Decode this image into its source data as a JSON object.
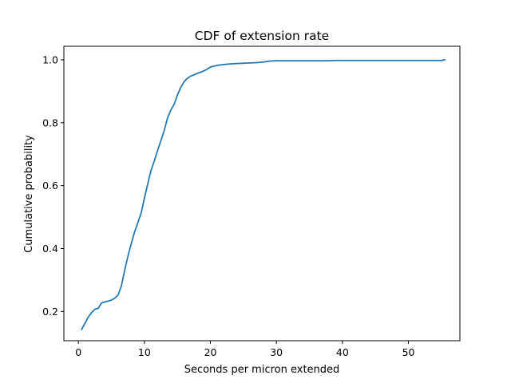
{
  "chart_data": {
    "type": "line",
    "title": "CDF of extension rate",
    "xlabel": "Seconds per micron extended",
    "ylabel": "Cumulative probability",
    "xlim": [
      -2.2,
      57.8
    ],
    "ylim": [
      0.107,
      1.043
    ],
    "xticks": [
      0,
      10,
      20,
      30,
      40,
      50
    ],
    "yticks": [
      0.2,
      0.4,
      0.6,
      0.8,
      1.0
    ],
    "xtick_labels": [
      "0",
      "10",
      "20",
      "30",
      "40",
      "50"
    ],
    "ytick_labels": [
      "0.2",
      "0.4",
      "0.6",
      "0.8",
      "1.0"
    ],
    "grid": false,
    "legend": "none",
    "series": [
      {
        "color": "#1f77b4",
        "x": [
          0.5,
          1.0,
          1.5,
          2.0,
          2.5,
          3.0,
          3.5,
          4.0,
          4.5,
          5.0,
          5.5,
          6.0,
          6.5,
          7.0,
          7.5,
          8.0,
          8.5,
          9.0,
          9.5,
          10.0,
          10.5,
          11.0,
          11.5,
          12.0,
          12.5,
          13.0,
          13.5,
          14.0,
          14.5,
          15.0,
          15.5,
          16.0,
          16.5,
          17.0,
          17.5,
          18.0,
          18.5,
          19.0,
          19.5,
          20.0,
          21.0,
          22.0,
          23.0,
          24.0,
          25.0,
          26.0,
          27.0,
          28.0,
          29.0,
          30.0,
          35.0,
          38.0,
          39.0,
          45.0,
          50.0,
          54.0,
          55.0,
          55.5
        ],
        "y": [
          0.143,
          0.163,
          0.182,
          0.196,
          0.207,
          0.21,
          0.227,
          0.23,
          0.233,
          0.236,
          0.242,
          0.252,
          0.28,
          0.33,
          0.375,
          0.415,
          0.452,
          0.482,
          0.512,
          0.56,
          0.605,
          0.648,
          0.678,
          0.712,
          0.743,
          0.775,
          0.815,
          0.84,
          0.858,
          0.888,
          0.912,
          0.93,
          0.941,
          0.948,
          0.952,
          0.957,
          0.96,
          0.965,
          0.97,
          0.977,
          0.982,
          0.985,
          0.987,
          0.988,
          0.989,
          0.99,
          0.991,
          0.993,
          0.996,
          0.997,
          0.997,
          0.997,
          0.998,
          0.998,
          0.998,
          0.998,
          0.998,
          1.0
        ]
      }
    ]
  }
}
